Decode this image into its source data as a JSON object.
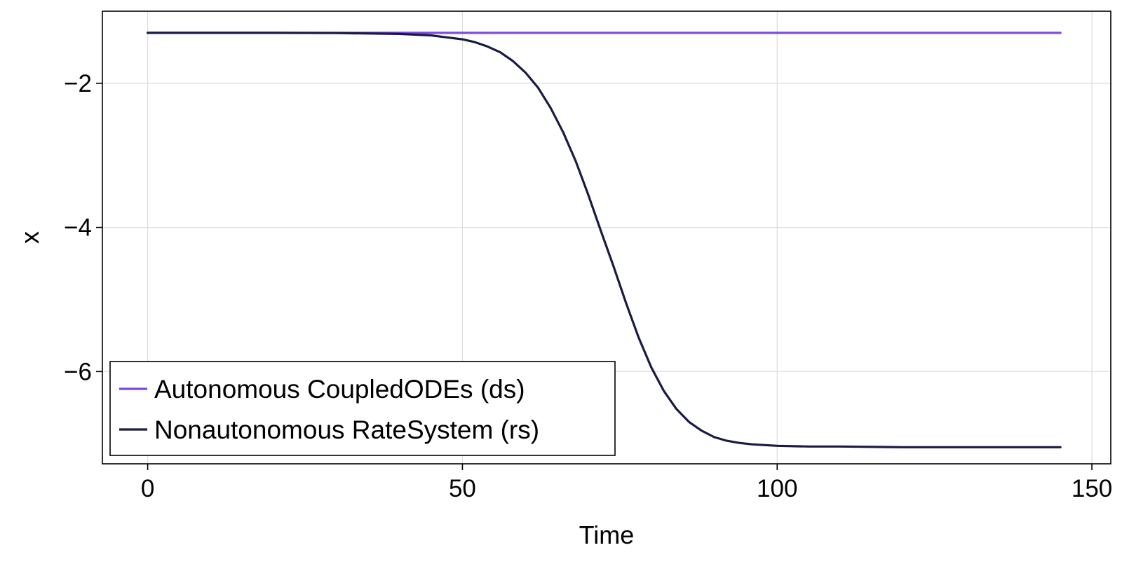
{
  "chart_data": {
    "type": "line",
    "title": "",
    "xlabel": "Time",
    "ylabel": "x",
    "xlim": [
      -7.2,
      153.0
    ],
    "ylim": [
      -7.28,
      -1.0
    ],
    "xticks": [
      0,
      50,
      100,
      150
    ],
    "xtick_labels": [
      "0",
      "50",
      "100",
      "150"
    ],
    "yticks": [
      -2,
      -4,
      -6
    ],
    "ytick_labels": [
      "−2",
      "−4",
      "−6"
    ],
    "grid": true,
    "legend_position": "bottom-left",
    "series": [
      {
        "name": "Autonomous CoupledODEs (ds)",
        "color": "#7b4be0",
        "x": [
          0,
          145
        ],
        "y": [
          -1.3,
          -1.3
        ]
      },
      {
        "name": "Nonautonomous RateSystem (rs)",
        "color": "#1a1b45",
        "x": [
          0,
          10,
          20,
          30,
          40,
          45,
          50,
          52,
          54,
          56,
          58,
          60,
          62,
          64,
          66,
          68,
          70,
          72,
          74,
          76,
          78,
          80,
          82,
          84,
          86,
          88,
          90,
          92,
          94,
          96,
          100,
          105,
          110,
          120,
          130,
          145
        ],
        "y": [
          -1.3,
          -1.3,
          -1.3,
          -1.303,
          -1.315,
          -1.335,
          -1.39,
          -1.43,
          -1.49,
          -1.57,
          -1.69,
          -1.85,
          -2.06,
          -2.34,
          -2.68,
          -3.08,
          -3.55,
          -4.05,
          -4.54,
          -5.05,
          -5.53,
          -5.94,
          -6.27,
          -6.52,
          -6.7,
          -6.82,
          -6.91,
          -6.96,
          -6.99,
          -7.01,
          -7.03,
          -7.04,
          -7.04,
          -7.05,
          -7.05,
          -7.05
        ]
      }
    ]
  }
}
